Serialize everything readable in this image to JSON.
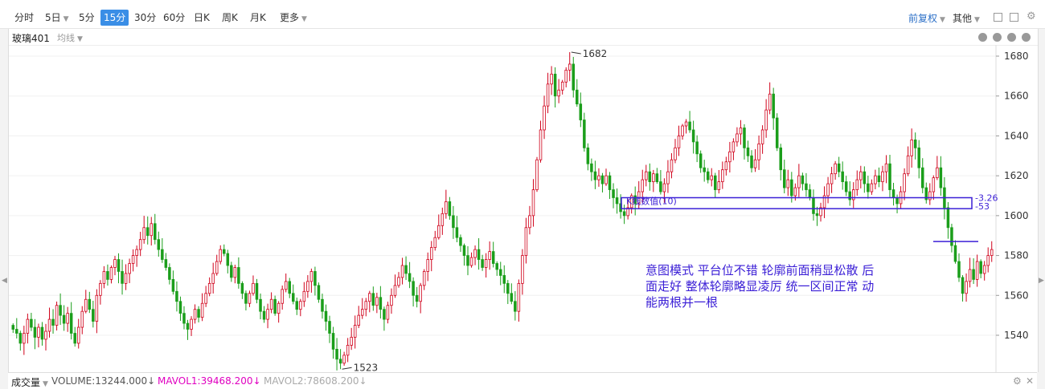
{
  "toolbar": {
    "periods": [
      "分时",
      "5日",
      "5分",
      "15分",
      "30分",
      "60分",
      "日K",
      "周K",
      "月K",
      "更多"
    ],
    "active_period": "15分",
    "adjust_label": "前复权",
    "other_label": "其他",
    "icons": [
      "grid-icon",
      "fullscreen-icon",
      "settings-icon"
    ]
  },
  "chart_header": {
    "symbol": "玻璃401",
    "ma_label": "均线"
  },
  "annotation": {
    "lines": [
      "意图模式 平台位不错 轮廓前面稍显松散 后",
      "面走好 整体轮廓略显凌厉 统一区间正常 动",
      "能两根并一根"
    ],
    "box_label": "K线数值(10)",
    "box_values": [
      "3.26",
      "53"
    ],
    "color": "#3b1fd6"
  },
  "volume_bar": {
    "label": "成交量",
    "volume": "VOLUME:13244.000↓",
    "mavol1": "MAVOL1:39468.200↓",
    "mavol2": "MAVOL2:78608.200↓",
    "mavol1_color": "#e000c0",
    "mavol2_color": "#aaaaaa"
  },
  "chart_data": {
    "type": "candlestick",
    "y_ticks": [
      1540,
      1560,
      1580,
      1600,
      1620,
      1640,
      1660,
      1680
    ],
    "ylim": [
      1528,
      1684
    ],
    "high_label": "1682",
    "low_label": "1523",
    "up_color": "#d0021b",
    "down_color": "#1b9e1b",
    "closes": [
      1543,
      1541,
      1536,
      1541,
      1548,
      1544,
      1539,
      1544,
      1538,
      1542,
      1548,
      1545,
      1555,
      1550,
      1546,
      1551,
      1541,
      1536,
      1544,
      1552,
      1558,
      1553,
      1547,
      1560,
      1566,
      1572,
      1568,
      1574,
      1578,
      1572,
      1566,
      1571,
      1576,
      1580,
      1583,
      1588,
      1594,
      1590,
      1596,
      1588,
      1583,
      1578,
      1574,
      1568,
      1562,
      1557,
      1551,
      1546,
      1543,
      1548,
      1553,
      1549,
      1556,
      1561,
      1566,
      1571,
      1577,
      1583,
      1581,
      1575,
      1569,
      1574,
      1566,
      1561,
      1556,
      1561,
      1566,
      1558,
      1552,
      1548,
      1553,
      1558,
      1551,
      1556,
      1563,
      1567,
      1561,
      1557,
      1553,
      1557,
      1562,
      1567,
      1572,
      1565,
      1558,
      1552,
      1547,
      1541,
      1533,
      1528,
      1526,
      1530,
      1535,
      1539,
      1545,
      1550,
      1553,
      1557,
      1561,
      1555,
      1559,
      1553,
      1548,
      1555,
      1560,
      1565,
      1569,
      1575,
      1571,
      1567,
      1560,
      1557,
      1565,
      1572,
      1578,
      1584,
      1589,
      1595,
      1601,
      1607,
      1600,
      1594,
      1589,
      1585,
      1580,
      1575,
      1579,
      1583,
      1578,
      1574,
      1578,
      1582,
      1576,
      1573,
      1570,
      1566,
      1561,
      1557,
      1552,
      1566,
      1580,
      1594,
      1600,
      1613,
      1628,
      1643,
      1655,
      1666,
      1671,
      1660,
      1663,
      1667,
      1673,
      1676,
      1663,
      1656,
      1648,
      1634,
      1626,
      1622,
      1618,
      1620,
      1616,
      1620,
      1613,
      1609,
      1606,
      1602,
      1600,
      1604,
      1610,
      1606,
      1612,
      1618,
      1622,
      1617,
      1621,
      1617,
      1612,
      1616,
      1622,
      1628,
      1634,
      1640,
      1645,
      1647,
      1643,
      1637,
      1631,
      1624,
      1622,
      1618,
      1620,
      1613,
      1617,
      1623,
      1627,
      1632,
      1637,
      1641,
      1644,
      1634,
      1630,
      1624,
      1628,
      1636,
      1643,
      1653,
      1661,
      1649,
      1634,
      1623,
      1614,
      1618,
      1610,
      1614,
      1620,
      1616,
      1613,
      1609,
      1601,
      1600,
      1604,
      1610,
      1616,
      1621,
      1626,
      1622,
      1617,
      1612,
      1608,
      1613,
      1618,
      1622,
      1616,
      1612,
      1616,
      1620,
      1617,
      1622,
      1626,
      1613,
      1609,
      1606,
      1612,
      1621,
      1630,
      1638,
      1634,
      1624,
      1614,
      1608,
      1612,
      1619,
      1624,
      1614,
      1604,
      1594,
      1585,
      1577,
      1569,
      1561,
      1567,
      1573,
      1568,
      1577,
      1571,
      1575,
      1580,
      1583
    ]
  }
}
